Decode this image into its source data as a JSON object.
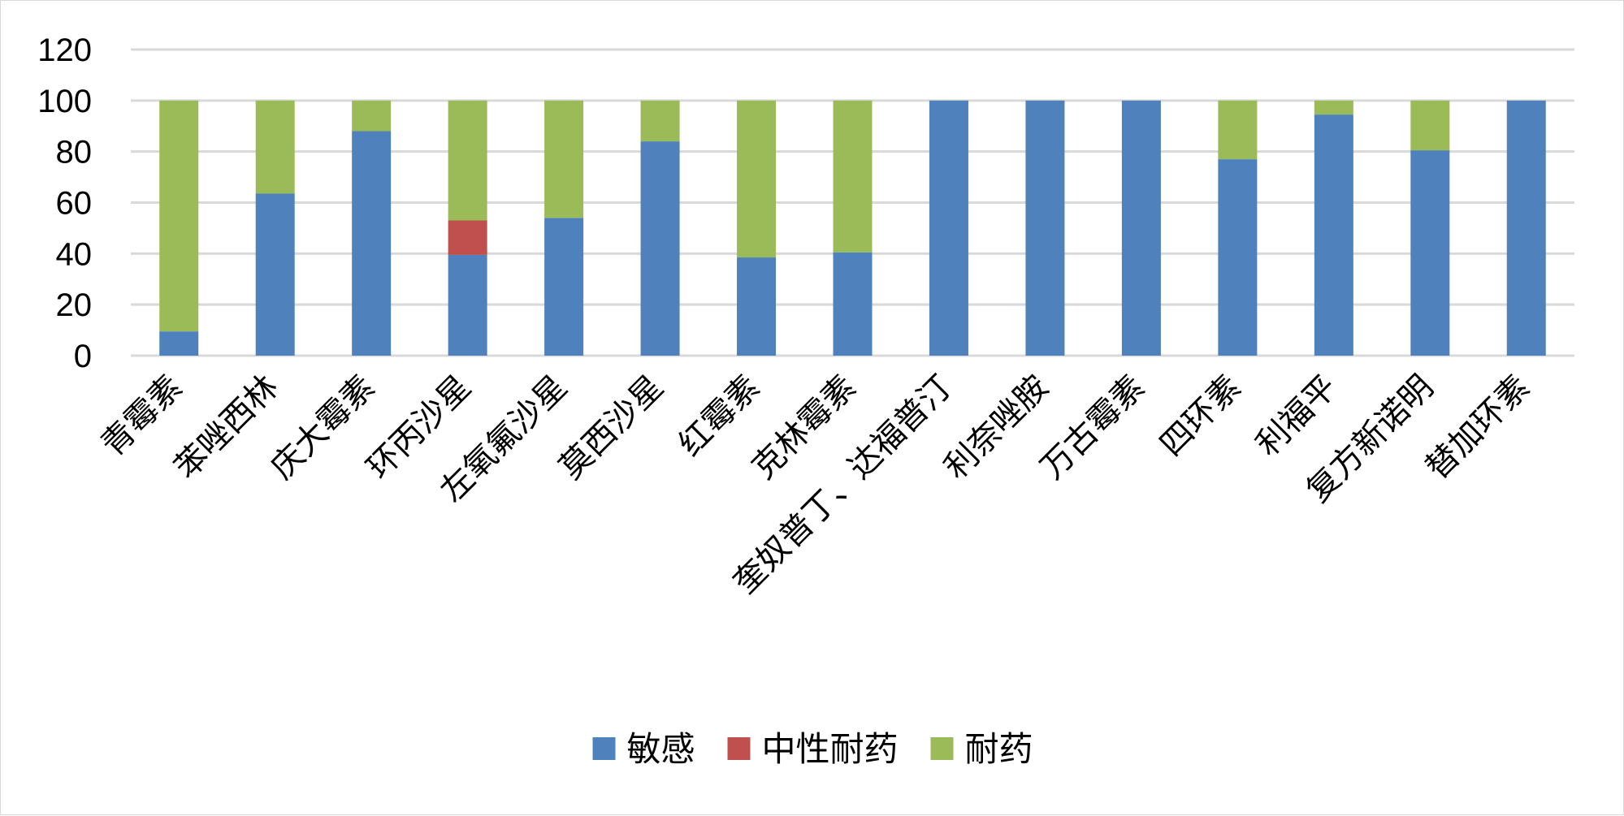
{
  "chart_data": {
    "type": "bar",
    "stacked": true,
    "title": "",
    "xlabel": "",
    "ylabel": "",
    "ylim": [
      0,
      120
    ],
    "yticks": [
      0,
      20,
      40,
      60,
      80,
      100,
      120
    ],
    "grid": true,
    "legend_position": "bottom",
    "categories": [
      "青霉素",
      "苯唑西林",
      "庆大霉素",
      "环丙沙星",
      "左氧氟沙星",
      "莫西沙星",
      "红霉素",
      "克林霉素",
      "奎奴普丁、达福普汀",
      "利奈唑胺",
      "万古霉素",
      "四环素",
      "利福平",
      "复方新诺明",
      "替加环素"
    ],
    "series": [
      {
        "name": "敏感",
        "color": "#4f81bd",
        "values": [
          9.5,
          63.5,
          88,
          39.5,
          54,
          84,
          38.5,
          40.5,
          100,
          100,
          100,
          77,
          94.5,
          80.5,
          100
        ]
      },
      {
        "name": "中性耐药",
        "color": "#c0504d",
        "values": [
          0,
          0,
          0,
          13.5,
          0,
          0,
          0,
          0,
          0,
          0,
          0,
          0,
          0,
          0,
          0
        ]
      },
      {
        "name": "耐药",
        "color": "#9bbb59",
        "values": [
          90.5,
          36.5,
          12,
          47,
          46,
          16,
          61.5,
          59.5,
          0,
          0,
          0,
          23,
          5.5,
          19.5,
          0
        ]
      }
    ]
  }
}
